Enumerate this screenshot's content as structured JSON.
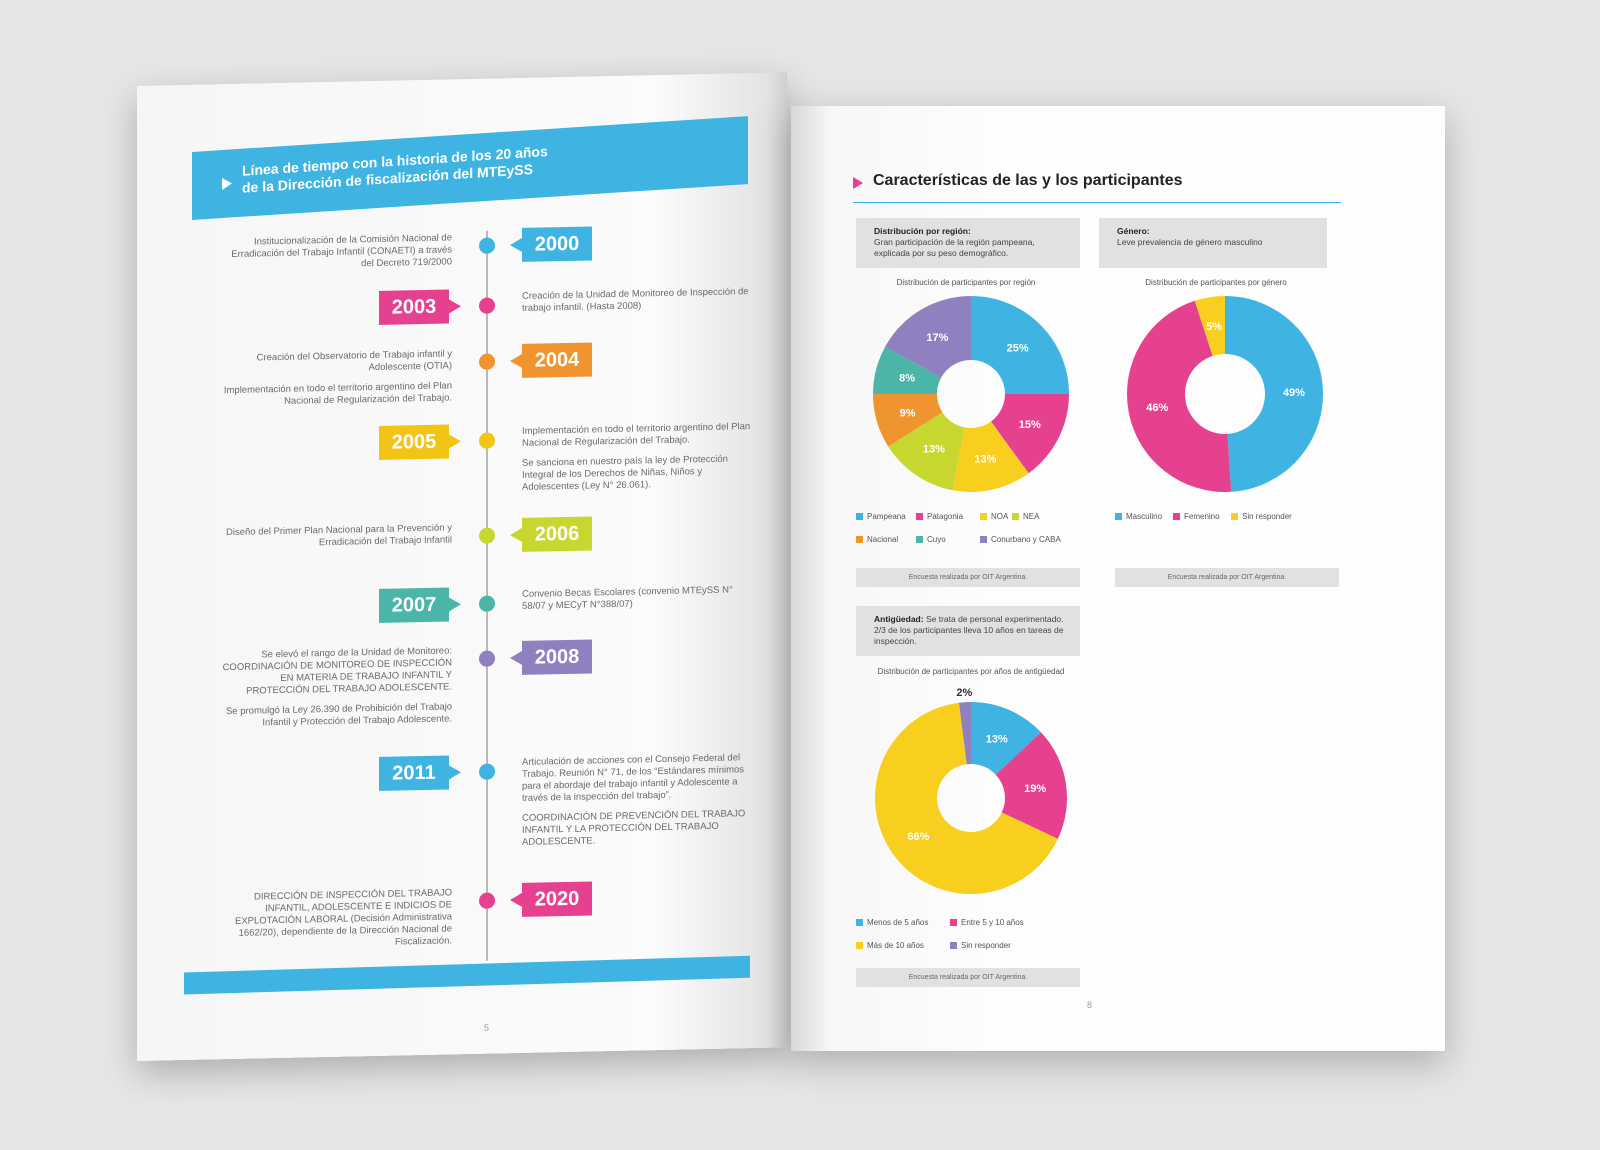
{
  "left": {
    "title_line1": "Línea de tiempo con la historia de los 20 años",
    "title_line2": "de la Dirección de fiscalización del MTEySS",
    "page_number": "5",
    "timeline": [
      {
        "year": "2000",
        "color": "#3fb4e2",
        "side": "right",
        "events": [
          "Institucionalización de la Comisión Nacional de Erradicación del Trabajo Infantil (CONAETI) a través del Decreto 719/2000"
        ]
      },
      {
        "year": "2003",
        "color": "#e6418f",
        "side": "left",
        "events": [
          "Creación de la Unidad de Monitoreo de Inspección de trabajo infantil. (Hasta 2008)"
        ]
      },
      {
        "year": "2004",
        "color": "#f0942f",
        "side": "right",
        "events": [
          "Creación del Observatorio de Trabajo infantil y Adolescente (OTIA)",
          "Implementación en todo el territorio argentino del Plan Nacional de Regularización del Trabajo."
        ]
      },
      {
        "year": "2005",
        "color": "#f2c515",
        "side": "left",
        "events": [
          "Implementación en todo el territorio argentino del Plan Nacional de Regularización del Trabajo.",
          "Se sanciona en nuestro país la ley de Protección Integral de los Derechos de Niñas, Niños y Adolescentes (Ley N° 26.061)."
        ]
      },
      {
        "year": "2006",
        "color": "#c8d630",
        "side": "right",
        "events": [
          "Diseño del Primer Plan Nacional para la Prevención y Erradicación del Trabajo Infantil"
        ]
      },
      {
        "year": "2007",
        "color": "#4bb5a8",
        "side": "left",
        "events": [
          "Convenio Becas Escolares (convenio MTEySS N° 58/07 y MECyT N°388/07)"
        ]
      },
      {
        "year": "2008",
        "color": "#8f80c0",
        "side": "right",
        "events": [
          "Se elevó el rango de la Unidad de Monitoreo: COORDINACIÓN DE MONITOREO DE INSPECCIÓN EN MATERIA DE TRABAJO INFANTIL Y PROTECCIÓN DEL TRABAJO ADOLESCENTE.",
          "Se promulgó la Ley 26.390 de Prohibición del Trabajo Infantil y Protección del Trabajo Adolescente."
        ]
      },
      {
        "year": "2011",
        "color": "#3fb4e2",
        "side": "left",
        "events": [
          "Articulación de acciones con el Consejo Federal del Trabajo. Reunión N° 71, de los “Estándares mínimos para el abordaje del trabajo infantil y Adolescente a través de la inspección del trabajo”.",
          "COORDINACIÓN DE PREVENCIÓN DEL TRABAJO INFANTIL Y LA PROTECCIÓN DEL TRABAJO ADOLESCENTE."
        ]
      },
      {
        "year": "2020",
        "color": "#e6418f",
        "side": "right",
        "events": [
          "DIRECCIÓN DE INSPECCIÓN DEL TRABAJO INFANTIL, ADOLESCENTE E INDICIOS DE EXPLOTACIÓN LABORAL (Decisión Administrativa 1662/20), dependiente de la Dirección Nacional de Fiscalización."
        ]
      }
    ]
  },
  "right": {
    "title": "Características de las y los participantes",
    "page_number": "8",
    "source_note": "Encuesta realizada por OIT Argentina.",
    "region_box": {
      "bold": "Distribución por región:",
      "text": "Gran participación de la región pampeana, explicada por su peso demográfico."
    },
    "gender_box": {
      "bold": "Género:",
      "text": "Leve prevalencia de género masculino"
    },
    "seniority_box": {
      "bold": "Antigüedad:",
      "text": "Se trata de personal experimentado. 2/3 de los participantes lleva 10 años en tareas de inspección."
    }
  },
  "chart_data": [
    {
      "type": "pie",
      "title": "Distribución de participantes por región",
      "categories": [
        "Pampeana",
        "Patagonia",
        "NOA",
        "NEA",
        "Nacional",
        "Cuyo",
        "Conurbano y CABA"
      ],
      "values": [
        25,
        15,
        13,
        13,
        9,
        8,
        17
      ],
      "colors": [
        "#3fb4e2",
        "#e6418f",
        "#f8cf1f",
        "#c8d630",
        "#f0942f",
        "#4bb5a8",
        "#8f80c0"
      ],
      "labels": [
        "25%",
        "15%",
        "13%",
        "13%",
        "9%",
        "8%",
        "17%"
      ],
      "legend_position": "bottom"
    },
    {
      "type": "pie",
      "title": "Distribución de participantes por género",
      "categories": [
        "Masculino",
        "Femenino",
        "Sin responder"
      ],
      "values": [
        49,
        46,
        5
      ],
      "colors": [
        "#3fb4e2",
        "#e6418f",
        "#f8cf1f"
      ],
      "labels": [
        "49%",
        "46%",
        "5%"
      ],
      "legend_position": "bottom"
    },
    {
      "type": "pie",
      "title": "Distribución de participantes por años de antigüedad",
      "categories": [
        "Menos de 5 años",
        "Entre 5 y 10 años",
        "Más de 10 años",
        "Sin responder"
      ],
      "values": [
        13,
        19,
        66,
        2
      ],
      "colors": [
        "#3fb4e2",
        "#e6418f",
        "#f8cf1f",
        "#8f80c0"
      ],
      "labels": [
        "13%",
        "19%",
        "66%",
        "2%"
      ],
      "legend_position": "bottom"
    }
  ]
}
